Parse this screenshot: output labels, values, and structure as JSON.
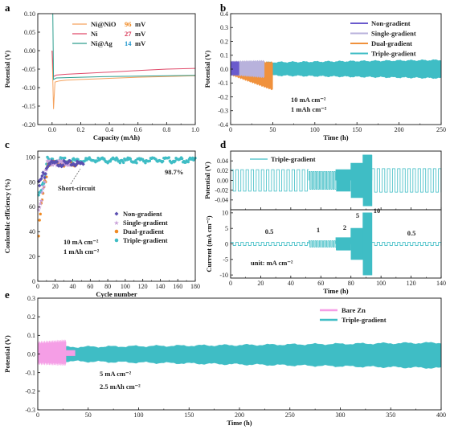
{
  "chart_data": [
    {
      "panel": "a",
      "type": "line",
      "xlabel": "Capacity (mAh)",
      "ylabel": "Potential (V)",
      "xlim": [
        -0.1,
        1.0
      ],
      "ylim": [
        -0.2,
        0.1
      ],
      "xticks": [
        "0.0",
        "0.2",
        "0.4",
        "0.6",
        "0.8",
        "1.0"
      ],
      "yticks": [
        "0.10",
        "0.05",
        "0.00",
        "-0.05",
        "-0.10",
        "-0.15",
        "-0.20"
      ],
      "legend_values": [
        "96",
        "27",
        "14"
      ],
      "legend_unit": "mV",
      "series": [
        {
          "name": "Ni@NiO",
          "color": "#f5a25d",
          "value_color": "#f08a24",
          "x": [
            0.0,
            0.01,
            0.02,
            0.05,
            0.1,
            0.2,
            0.4,
            0.6,
            0.8,
            1.0
          ],
          "y": [
            0.0,
            -0.158,
            -0.085,
            -0.082,
            -0.08,
            -0.078,
            -0.075,
            -0.072,
            -0.07,
            -0.068
          ]
        },
        {
          "name": "Ni",
          "color": "#e04a6a",
          "value_color": "#d62b4d",
          "x": [
            0.0,
            0.01,
            0.03,
            0.1,
            0.2,
            0.4,
            0.6,
            0.8,
            1.0
          ],
          "y": [
            0.0,
            -0.07,
            -0.066,
            -0.064,
            -0.062,
            -0.058,
            -0.054,
            -0.05,
            -0.048
          ]
        },
        {
          "name": "Ni@Ag",
          "color": "#2e9e8e",
          "value_color": "#2a9bd0",
          "x": [
            0.0,
            0.005,
            0.01,
            0.03,
            0.1,
            0.2,
            0.4,
            0.6,
            0.8,
            1.0
          ],
          "y": [
            0.1,
            0.1,
            -0.078,
            -0.074,
            -0.073,
            -0.072,
            -0.07,
            -0.069,
            -0.068,
            -0.067
          ]
        }
      ]
    },
    {
      "panel": "b",
      "type": "area",
      "xlabel": "Time (h)",
      "ylabel": "Potential (V)",
      "xlim": [
        0,
        250
      ],
      "ylim": [
        -0.4,
        0.4
      ],
      "xticks": [
        "0",
        "50",
        "100",
        "150",
        "200",
        "250"
      ],
      "yticks": [
        "0.4",
        "0.3",
        "0.2",
        "0.1",
        "0.0",
        "-0.1",
        "-0.2",
        "-0.3",
        "-0.4"
      ],
      "annotations": [
        "10 mA cm⁻²",
        "1 mAh cm⁻²"
      ],
      "series": [
        {
          "name": "Non-gradient",
          "color": "#6a5acd",
          "x_range": [
            0,
            10
          ],
          "upper": [
            0.05,
            0.05
          ],
          "lower": [
            -0.04,
            -0.04
          ]
        },
        {
          "name": "Single-gradient",
          "color": "#b8b2dc",
          "x_range": [
            0,
            40
          ],
          "upper": [
            0.055,
            0.06
          ],
          "lower": [
            -0.04,
            -0.06
          ]
        },
        {
          "name": "Dual-gradient",
          "color": "#f0913c",
          "x_range": [
            0,
            50
          ],
          "upper": [
            0.05,
            0.05
          ],
          "lower": [
            -0.04,
            -0.15
          ]
        },
        {
          "name": "Triple-gradient",
          "color": "#3fbdc5",
          "x_range": [
            0,
            250
          ],
          "upper": [
            0.045,
            0.065
          ],
          "lower": [
            -0.04,
            -0.065
          ]
        }
      ]
    },
    {
      "panel": "c",
      "type": "scatter",
      "xlabel": "Cycle number",
      "ylabel": "Coulombic efficiency (%)",
      "xlim": [
        0,
        180
      ],
      "ylim": [
        0,
        105
      ],
      "xticks": [
        "0",
        "20",
        "40",
        "60",
        "80",
        "100",
        "120",
        "140",
        "160",
        "180"
      ],
      "yticks": [
        "100",
        "80",
        "60",
        "40",
        "20",
        "0"
      ],
      "annotations": [
        "98.7%",
        "Short-circuit",
        "10 mA cm⁻²",
        "1 mAh cm⁻²"
      ],
      "series": [
        {
          "name": "Non-gradient",
          "color": "#5b4fb0",
          "marker": "diamond",
          "n": 52,
          "start": 78,
          "plateau": 96
        },
        {
          "name": "Single-gradient",
          "color": "#c9a0d9",
          "marker": "star",
          "n": 36,
          "start": 62,
          "plateau": 96.5
        },
        {
          "name": "Dual-gradient",
          "color": "#f08a24",
          "marker": "circle",
          "n": 45,
          "start": 45,
          "plateau": 96
        },
        {
          "name": "Triple-gradient",
          "color": "#3fbdc5",
          "marker": "circle",
          "n": 180,
          "start": 70,
          "plateau": 98.7
        }
      ]
    },
    {
      "panel": "d",
      "type": "line",
      "xlabel": "Time (h)",
      "ylabel_top": "Potential (V)",
      "ylabel_bottom": "Current (mA cm⁻²)",
      "xlim": [
        0,
        140
      ],
      "ylim_top": [
        -0.06,
        0.06
      ],
      "ylim_bottom": [
        -11,
        11
      ],
      "xticks": [
        "0",
        "20",
        "40",
        "60",
        "80",
        "100",
        "120",
        "140"
      ],
      "yticks_top": [
        "0.04",
        "0.02",
        "0.00",
        "-0.02",
        "-0.04"
      ],
      "yticks_bottom": [
        "10",
        "5",
        "0",
        "-5",
        "-10"
      ],
      "annotations": [
        "unit: mA cm⁻²"
      ],
      "rate_labels": [
        "0.5",
        "1",
        "2",
        "5",
        "10",
        "0.5"
      ],
      "series": [
        {
          "name": "Triple-gradient",
          "color": "#3fbdc5",
          "segments": [
            {
              "t": [
                0,
                52
              ],
              "current": 0.5,
              "voltage_amp": 0.022
            },
            {
              "t": [
                52,
                70
              ],
              "current": 1,
              "voltage_amp": 0.018
            },
            {
              "t": [
                70,
                80
              ],
              "current": 2,
              "voltage_amp": 0.022
            },
            {
              "t": [
                80,
                88
              ],
              "current": 5,
              "voltage_amp": 0.035
            },
            {
              "t": [
                88,
                94
              ],
              "current": 10,
              "voltage_amp": 0.052
            },
            {
              "t": [
                94,
                140
              ],
              "current": 0.5,
              "voltage_amp": 0.024
            }
          ]
        }
      ]
    },
    {
      "panel": "e",
      "type": "area",
      "xlabel": "Time (h)",
      "ylabel": "Potential (V)",
      "xlim": [
        0,
        400
      ],
      "ylim": [
        -0.3,
        0.3
      ],
      "xticks": [
        "0",
        "50",
        "100",
        "150",
        "200",
        "250",
        "300",
        "350",
        "400"
      ],
      "yticks": [
        "0.3",
        "0.2",
        "0.1",
        "0.0",
        "-0.1",
        "-0.2",
        "-0.3"
      ],
      "annotations": [
        "5 mA cm⁻²",
        "2.5 mAh cm⁻²"
      ],
      "series": [
        {
          "name": "Bare Zn",
          "color": "#f59ee6",
          "x_range": [
            0,
            37
          ],
          "upper": [
            0.06,
            0.07
          ],
          "lower": [
            -0.05,
            -0.055
          ]
        },
        {
          "name": "Triple-gradient",
          "color": "#3fbdc5",
          "x_range": [
            0,
            400
          ],
          "upper": [
            0.035,
            0.06
          ],
          "lower": [
            -0.035,
            -0.075
          ]
        }
      ]
    }
  ]
}
